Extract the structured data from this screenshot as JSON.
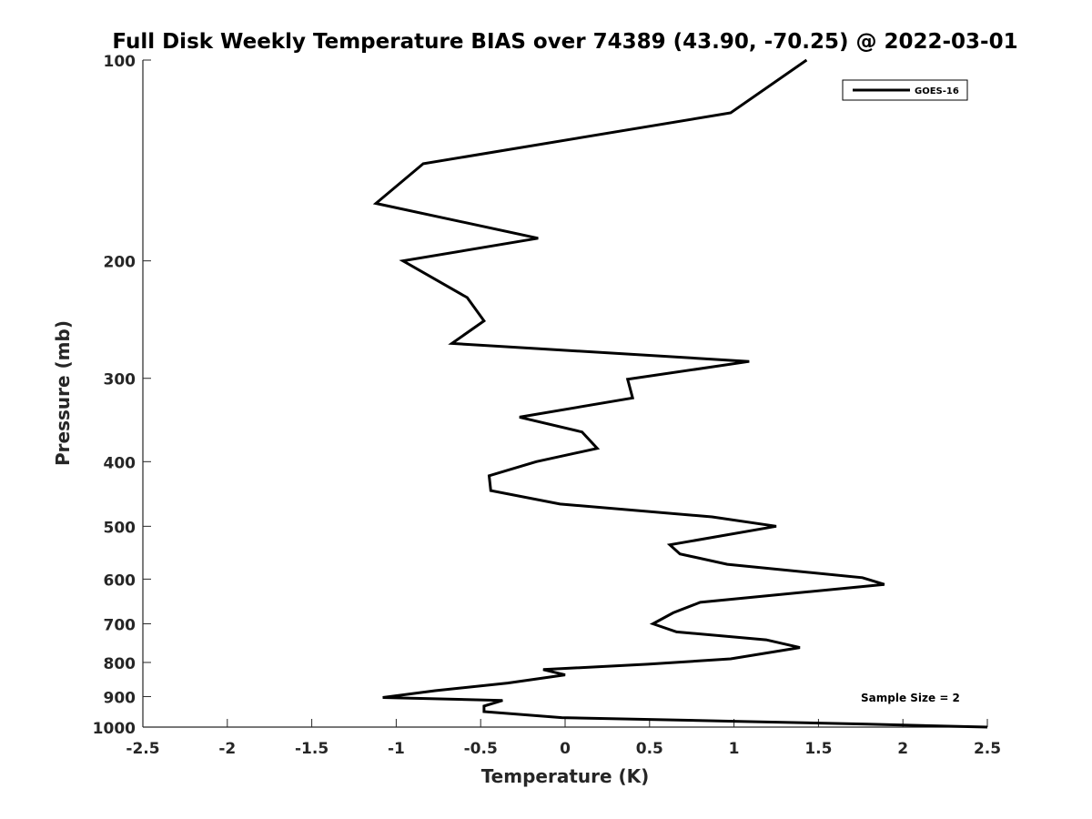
{
  "chart_data": {
    "type": "line",
    "title": "Full Disk Weekly Temperature BIAS over 74389 (43.90, -70.25) @ 2022-03-01",
    "xlabel": "Temperature (K)",
    "ylabel": "Pressure (mb)",
    "xlim": [
      -2.5,
      2.5
    ],
    "ylim": [
      100,
      1000
    ],
    "y_scale": "log",
    "y_reversed": true,
    "x_ticks": [
      "-2.5",
      "-2",
      "-1.5",
      "-1",
      "-0.5",
      "0",
      "0.5",
      "1",
      "1.5",
      "2",
      "2.5"
    ],
    "x_tick_values": [
      -2.5,
      -2,
      -1.5,
      -1,
      -0.5,
      0,
      0.5,
      1,
      1.5,
      2,
      2.5
    ],
    "y_ticks": [
      "100",
      "200",
      "300",
      "400",
      "500",
      "600",
      "700",
      "800",
      "900",
      "1000"
    ],
    "y_tick_values": [
      100,
      200,
      300,
      400,
      500,
      600,
      700,
      800,
      900,
      1000
    ],
    "grid": false,
    "legend_position": "top-right",
    "annotation": "Sample Size = 2",
    "series": [
      {
        "name": "GOES-16",
        "color": "#000000",
        "points": [
          [
            1.43,
            100
          ],
          [
            0.98,
            120
          ],
          [
            -0.84,
            143
          ],
          [
            -1.12,
            164
          ],
          [
            -0.16,
            185
          ],
          [
            -0.96,
            200
          ],
          [
            -0.58,
            227
          ],
          [
            -0.48,
            246
          ],
          [
            -0.67,
            266
          ],
          [
            1.09,
            283
          ],
          [
            0.37,
            301
          ],
          [
            0.4,
            321
          ],
          [
            -0.27,
            343
          ],
          [
            0.1,
            361
          ],
          [
            0.19,
            382
          ],
          [
            -0.17,
            400
          ],
          [
            -0.45,
            420
          ],
          [
            -0.44,
            442
          ],
          [
            -0.03,
            463
          ],
          [
            0.87,
            484
          ],
          [
            1.25,
            500
          ],
          [
            0.62,
            533
          ],
          [
            0.68,
            550
          ],
          [
            0.96,
            570
          ],
          [
            1.76,
            597
          ],
          [
            1.89,
            611
          ],
          [
            0.8,
            650
          ],
          [
            0.64,
            674
          ],
          [
            0.52,
            700
          ],
          [
            0.66,
            720
          ],
          [
            1.19,
            740
          ],
          [
            1.39,
            760
          ],
          [
            0.98,
            790
          ],
          [
            0.49,
            805
          ],
          [
            -0.13,
            820
          ],
          [
            0.0,
            835
          ],
          [
            -0.34,
            859
          ],
          [
            -0.77,
            882
          ],
          [
            -1.08,
            903
          ],
          [
            -0.37,
            912
          ],
          [
            -0.48,
            930
          ],
          [
            -0.48,
            948
          ],
          [
            -0.02,
            968
          ],
          [
            1.0,
            980
          ],
          [
            1.79,
            990
          ],
          [
            2.5,
            1000
          ]
        ]
      }
    ]
  }
}
